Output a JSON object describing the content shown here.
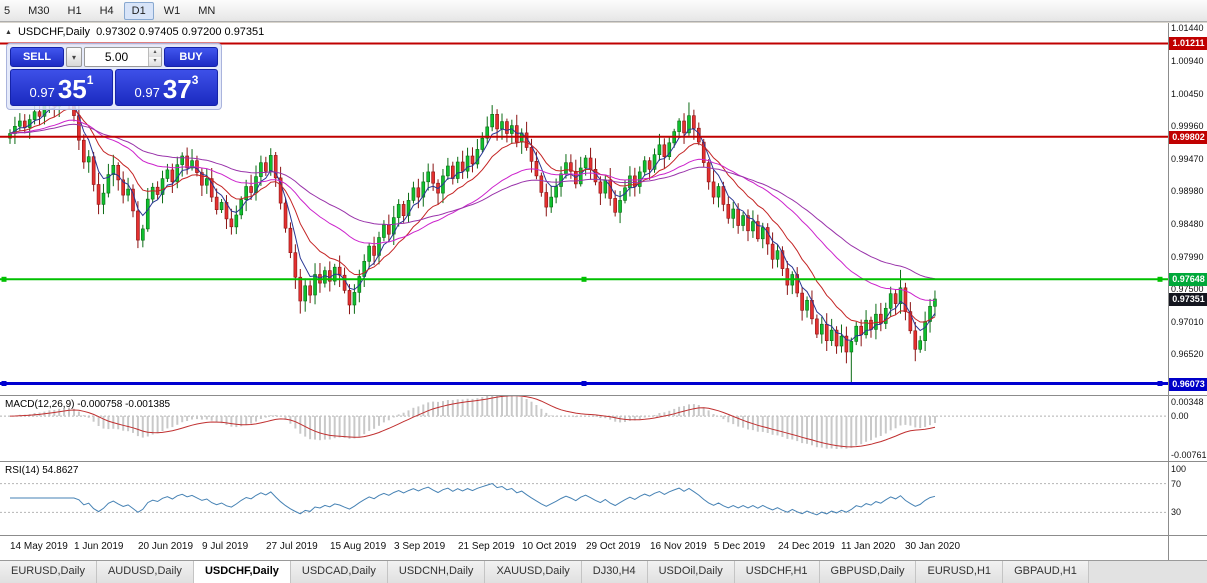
{
  "toolbar": {
    "timeframes": [
      "5",
      "M30",
      "H1",
      "H4",
      "D1",
      "W1",
      "MN"
    ],
    "active": "D1"
  },
  "chart_header": {
    "collapse_icon": "▲",
    "title": "USDCHF,Daily",
    "ohlc": "0.97302 0.97405 0.97200 0.97351"
  },
  "trade_panel": {
    "sell_label": "SELL",
    "buy_label": "BUY",
    "volume": "5.00",
    "button_color": "#2334CF",
    "sell_price": {
      "prefix": "0.97",
      "big": "35",
      "sup": "1"
    },
    "buy_price": {
      "prefix": "0.97",
      "big": "37",
      "sup": "3"
    }
  },
  "icons": {
    "chevron_down": "▾",
    "spin_up": "▴",
    "spin_down": "▾"
  },
  "indicators": {
    "macd": {
      "label": "MACD(12,26,9) -0.000758 -0.001385",
      "scale": [
        "0.00348",
        "0.00",
        "-0.00761"
      ]
    },
    "rsi": {
      "label": "RSI(14) 54.8627",
      "scale": [
        "100",
        "70",
        "30"
      ]
    }
  },
  "tabs": {
    "items": [
      {
        "label": "EURUSD,Daily"
      },
      {
        "label": "AUDUSD,Daily"
      },
      {
        "label": "USDCHF,Daily",
        "active": true
      },
      {
        "label": "USDCAD,Daily"
      },
      {
        "label": "USDCNH,Daily"
      },
      {
        "label": "XAUUSD,Daily"
      },
      {
        "label": "DJ30,H4"
      },
      {
        "label": "USDOil,Daily"
      },
      {
        "label": "USDCHF,H1"
      },
      {
        "label": "GBPUSD,Daily"
      },
      {
        "label": "EURUSD,H1"
      },
      {
        "label": "GBPAUD,H1"
      }
    ]
  },
  "chart_data": {
    "type": "candlestick",
    "title": "USDCHF,Daily",
    "ohlc_display": {
      "open": "0.97302",
      "high": "0.97405",
      "low": "0.97200",
      "close": "0.97351"
    },
    "ylim": [
      0.959,
      1.0152
    ],
    "y_ticks": [
      "1.01440",
      "1.00940",
      "1.00450",
      "0.99960",
      "0.99470",
      "0.98980",
      "0.98480",
      "0.97990",
      "0.97500",
      "0.97010",
      "0.96520"
    ],
    "x_labels": [
      "14 May 2019",
      "1 Jun 2019",
      "20 Jun 2019",
      "9 Jul 2019",
      "27 Jul 2019",
      "15 Aug 2019",
      "3 Sep 2019",
      "21 Sep 2019",
      "10 Oct 2019",
      "29 Oct 2019",
      "16 Nov 2019",
      "5 Dec 2019",
      "24 Dec 2019",
      "11 Jan 2020",
      "30 Jan 2020"
    ],
    "bars_per_label": 13,
    "first_open": 0.9978,
    "closes": [
      0.9985,
      0.9996,
      1.0004,
      0.9994,
      1.0006,
      1.0018,
      1.0011,
      1.0027,
      1.0038,
      1.0026,
      1.0042,
      1.0053,
      1.0037,
      1.0012,
      0.9975,
      0.9942,
      0.995,
      0.9908,
      0.9878,
      0.9895,
      0.9923,
      0.9937,
      0.9915,
      0.9892,
      0.9901,
      0.9868,
      0.9824,
      0.9841,
      0.9886,
      0.9904,
      0.9893,
      0.9917,
      0.993,
      0.9912,
      0.9938,
      0.9951,
      0.9933,
      0.9944,
      0.9926,
      0.9907,
      0.9917,
      0.9889,
      0.987,
      0.9881,
      0.9856,
      0.9844,
      0.9862,
      0.9885,
      0.9905,
      0.9896,
      0.992,
      0.9941,
      0.9928,
      0.9952,
      0.9918,
      0.988,
      0.9842,
      0.9805,
      0.9768,
      0.9732,
      0.9755,
      0.9741,
      0.9772,
      0.9759,
      0.9778,
      0.9762,
      0.9783,
      0.9771,
      0.9748,
      0.9726,
      0.9745,
      0.9769,
      0.9792,
      0.9815,
      0.9801,
      0.9828,
      0.9847,
      0.9833,
      0.9858,
      0.9878,
      0.9861,
      0.9884,
      0.9903,
      0.9889,
      0.9912,
      0.9927,
      0.991,
      0.9895,
      0.9921,
      0.9936,
      0.9917,
      0.9942,
      0.9928,
      0.9951,
      0.9939,
      0.9961,
      0.9978,
      0.9995,
      1.0014,
      0.9992,
      1.0003,
      0.9985,
      0.9997,
      0.9972,
      0.9986,
      0.9964,
      0.9943,
      0.9921,
      0.9896,
      0.9874,
      0.9889,
      0.9905,
      0.9924,
      0.9941,
      0.9928,
      0.9909,
      0.9933,
      0.9948,
      0.9931,
      0.9912,
      0.9895,
      0.9915,
      0.9887,
      0.9866,
      0.9884,
      0.9903,
      0.9921,
      0.9905,
      0.9927,
      0.9944,
      0.9931,
      0.9953,
      0.9968,
      0.995,
      0.9971,
      0.9988,
      1.0004,
      0.9986,
      1.0012,
      0.9993,
      0.9972,
      0.9941,
      0.9912,
      0.9889,
      0.9905,
      0.9878,
      0.9857,
      0.9871,
      0.9846,
      0.9861,
      0.9838,
      0.9852,
      0.9826,
      0.9843,
      0.9818,
      0.9795,
      0.9808,
      0.9781,
      0.9756,
      0.9772,
      0.9744,
      0.9718,
      0.9733,
      0.9705,
      0.9682,
      0.9697,
      0.9672,
      0.9688,
      0.9664,
      0.9679,
      0.9655,
      0.9671,
      0.9694,
      0.9681,
      0.9703,
      0.9689,
      0.9712,
      0.9698,
      0.9721,
      0.9743,
      0.9728,
      0.9752,
      0.9716,
      0.9687,
      0.9659,
      0.9672,
      0.9701,
      0.9724,
      0.97351
    ],
    "wick_overrides": {
      "26": {
        "low": 0.9812
      },
      "59": {
        "low": 0.9713
      },
      "69": {
        "low": 0.9712
      },
      "98": {
        "high": 1.0028
      },
      "138": {
        "high": 1.0032
      },
      "171": {
        "low": 0.9607
      },
      "181": {
        "high": 0.9779
      },
      "184": {
        "low": 0.9641
      }
    },
    "candle_up_color": "#0FBF2F",
    "candle_down_color": "#E43030",
    "moving_averages": [
      {
        "period": 5,
        "color": "#283593",
        "width": 1
      },
      {
        "period": 13,
        "color": "#C42424",
        "width": 1
      },
      {
        "period": 34,
        "color": "#CC22CC",
        "width": 1
      },
      {
        "period": 55,
        "color": "#9933AA",
        "width": 1
      }
    ],
    "hlines": [
      {
        "price": 1.01211,
        "color": "#C00000",
        "width": 2,
        "handles": false
      },
      {
        "price": 0.99802,
        "color": "#C00000",
        "width": 2,
        "handles": false
      },
      {
        "price": 0.97648,
        "color": "#00C000",
        "width": 2,
        "handles": true
      },
      {
        "price": 0.96073,
        "color": "#0000D0",
        "width": 3,
        "handles": true
      }
    ],
    "current_price": 0.97351,
    "price_badges": [
      {
        "value": "1.01211",
        "price": 1.01211,
        "color": "#C00000"
      },
      {
        "value": "0.99802",
        "price": 0.99802,
        "color": "#C00000"
      },
      {
        "value": "0.97648",
        "price": 0.97648,
        "color": "#00A83A"
      },
      {
        "value": "0.97351",
        "price": 0.97351,
        "color": "#14161F"
      },
      {
        "value": "0.96073",
        "price": 0.96073,
        "color": "#0000C8"
      }
    ],
    "indicators": {
      "macd": {
        "fast": 12,
        "slow": 26,
        "signal": 9,
        "ylim": [
          -0.00761,
          0.00348
        ],
        "histogram_color": "#C9C9C9",
        "signal_color": "#C03030"
      },
      "rsi": {
        "period": 14,
        "ylim": [
          0,
          100
        ],
        "levels": [
          70,
          30
        ],
        "line_color": "#4682B4"
      }
    }
  }
}
